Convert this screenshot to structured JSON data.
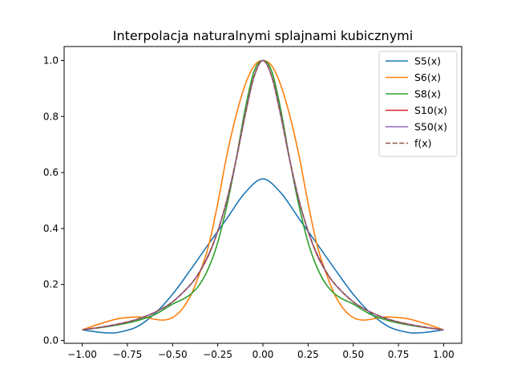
{
  "chart_data": {
    "type": "line",
    "title": "Interpolacja naturalnymi splajnami kubicznymi",
    "xlabel": "",
    "ylabel": "",
    "xlim": [
      -1.1,
      1.1
    ],
    "ylim": [
      -0.01,
      1.05
    ],
    "xticks": [
      "−1.00",
      "−0.75",
      "−0.50",
      "−0.25",
      "0.00",
      "0.25",
      "0.50",
      "0.75",
      "1.00"
    ],
    "xtick_values": [
      -1.0,
      -0.75,
      -0.5,
      -0.25,
      0.0,
      0.25,
      0.5,
      0.75,
      1.0
    ],
    "yticks": [
      "0.0",
      "0.2",
      "0.4",
      "0.6",
      "0.8",
      "1.0"
    ],
    "ytick_values": [
      0.0,
      0.2,
      0.4,
      0.6,
      0.8,
      1.0
    ],
    "grid": false,
    "legend_position": "top-right",
    "series": [
      {
        "name": "S5(x)",
        "color": "#1f77b4",
        "style": "solid",
        "x": [
          -1.0,
          -0.9,
          -0.85,
          -0.8,
          -0.7,
          -0.6,
          -0.5,
          -0.4,
          -0.3,
          -0.2,
          -0.1,
          0.0,
          0.1,
          0.2,
          0.3,
          0.4,
          0.5,
          0.6,
          0.7,
          0.8,
          0.85,
          0.9,
          1.0
        ],
        "y": [
          0.038,
          0.029,
          0.027,
          0.029,
          0.048,
          0.095,
          0.165,
          0.253,
          0.345,
          0.435,
          0.527,
          0.577,
          0.527,
          0.435,
          0.345,
          0.253,
          0.165,
          0.095,
          0.048,
          0.029,
          0.027,
          0.029,
          0.038
        ]
      },
      {
        "name": "S6(x)",
        "color": "#ff7f0e",
        "style": "solid",
        "x": [
          -1.0,
          -0.9,
          -0.8,
          -0.7,
          -0.65,
          -0.6,
          -0.55,
          -0.5,
          -0.45,
          -0.4,
          -0.35,
          -0.3,
          -0.25,
          -0.2,
          -0.15,
          -0.1,
          -0.05,
          0.0,
          0.05,
          0.1,
          0.15,
          0.2,
          0.25,
          0.3,
          0.35,
          0.4,
          0.45,
          0.5,
          0.55,
          0.6,
          0.65,
          0.7,
          0.8,
          0.9,
          1.0
        ],
        "y": [
          0.038,
          0.06,
          0.078,
          0.084,
          0.082,
          0.076,
          0.073,
          0.082,
          0.11,
          0.16,
          0.24,
          0.34,
          0.49,
          0.66,
          0.8,
          0.91,
          0.98,
          1.0,
          0.98,
          0.91,
          0.8,
          0.66,
          0.49,
          0.34,
          0.24,
          0.16,
          0.11,
          0.082,
          0.073,
          0.076,
          0.082,
          0.084,
          0.078,
          0.06,
          0.038
        ]
      },
      {
        "name": "S8(x)",
        "color": "#2ca02c",
        "style": "solid",
        "x": [
          -1.0,
          -0.9,
          -0.8,
          -0.7,
          -0.6,
          -0.5,
          -0.45,
          -0.4,
          -0.35,
          -0.3,
          -0.25,
          -0.2,
          -0.15,
          -0.1,
          -0.05,
          0.0,
          0.05,
          0.1,
          0.15,
          0.2,
          0.25,
          0.3,
          0.35,
          0.4,
          0.45,
          0.5,
          0.6,
          0.7,
          0.8,
          0.9,
          1.0
        ],
        "y": [
          0.038,
          0.046,
          0.056,
          0.07,
          0.092,
          0.13,
          0.145,
          0.165,
          0.2,
          0.26,
          0.35,
          0.48,
          0.64,
          0.82,
          0.96,
          1.0,
          0.96,
          0.82,
          0.64,
          0.48,
          0.35,
          0.26,
          0.2,
          0.165,
          0.145,
          0.13,
          0.092,
          0.07,
          0.056,
          0.046,
          0.038
        ]
      },
      {
        "name": "S10(x)",
        "color": "#d62728",
        "style": "solid",
        "x": [
          -1.0,
          -0.9,
          -0.8,
          -0.7,
          -0.6,
          -0.5,
          -0.4,
          -0.35,
          -0.3,
          -0.25,
          -0.2,
          -0.15,
          -0.1,
          -0.05,
          0.0,
          0.05,
          0.1,
          0.15,
          0.2,
          0.25,
          0.3,
          0.35,
          0.4,
          0.5,
          0.6,
          0.7,
          0.8,
          0.9,
          1.0
        ],
        "y": [
          0.038,
          0.047,
          0.059,
          0.075,
          0.1,
          0.138,
          0.2,
          0.245,
          0.305,
          0.39,
          0.5,
          0.64,
          0.8,
          0.94,
          1.0,
          0.94,
          0.8,
          0.64,
          0.5,
          0.39,
          0.305,
          0.245,
          0.2,
          0.138,
          0.1,
          0.075,
          0.059,
          0.047,
          0.038
        ]
      },
      {
        "name": "S50(x)",
        "color": "#9467bd",
        "style": "solid",
        "x": [
          -1.0,
          -0.9,
          -0.8,
          -0.7,
          -0.6,
          -0.5,
          -0.4,
          -0.35,
          -0.3,
          -0.25,
          -0.2,
          -0.15,
          -0.1,
          -0.05,
          0.0,
          0.05,
          0.1,
          0.15,
          0.2,
          0.25,
          0.3,
          0.35,
          0.4,
          0.5,
          0.6,
          0.7,
          0.8,
          0.9,
          1.0
        ],
        "y": [
          0.038,
          0.047,
          0.059,
          0.075,
          0.1,
          0.138,
          0.2,
          0.246,
          0.308,
          0.39,
          0.5,
          0.64,
          0.8,
          0.941,
          1.0,
          0.941,
          0.8,
          0.64,
          0.5,
          0.39,
          0.308,
          0.246,
          0.2,
          0.138,
          0.1,
          0.075,
          0.059,
          0.047,
          0.038
        ]
      },
      {
        "name": "f(x)",
        "color": "#8c564b",
        "style": "dashed",
        "x": [
          -1.0,
          -0.9,
          -0.8,
          -0.7,
          -0.6,
          -0.5,
          -0.4,
          -0.35,
          -0.3,
          -0.25,
          -0.2,
          -0.15,
          -0.1,
          -0.05,
          0.0,
          0.05,
          0.1,
          0.15,
          0.2,
          0.25,
          0.3,
          0.35,
          0.4,
          0.5,
          0.6,
          0.7,
          0.8,
          0.9,
          1.0
        ],
        "y": [
          0.038,
          0.047,
          0.059,
          0.075,
          0.1,
          0.138,
          0.2,
          0.246,
          0.308,
          0.39,
          0.5,
          0.64,
          0.8,
          0.941,
          1.0,
          0.941,
          0.8,
          0.64,
          0.5,
          0.39,
          0.308,
          0.246,
          0.2,
          0.138,
          0.1,
          0.075,
          0.059,
          0.047,
          0.038
        ]
      }
    ]
  }
}
